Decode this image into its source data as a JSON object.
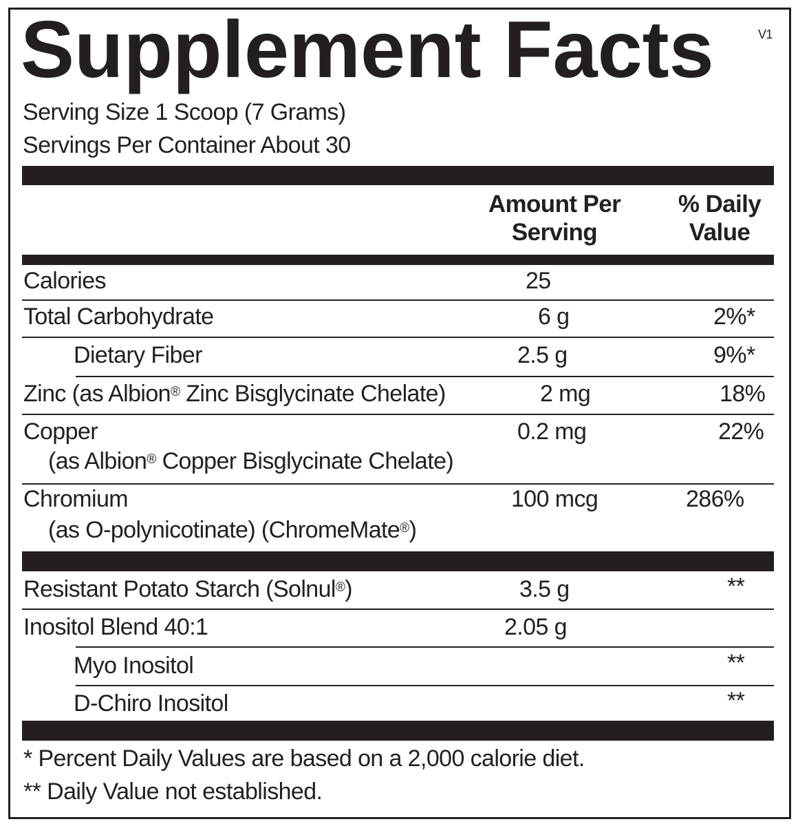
{
  "title": "Supplement Facts",
  "version": "V1",
  "serving_size": "Serving Size 1 Scoop (7 Grams)",
  "servings_per_container": "Servings Per Container About 30",
  "header": {
    "amount_line1": "Amount Per",
    "amount_line2": "Serving",
    "dv_line1": "% Daily",
    "dv_line2": "Value"
  },
  "rows": [
    {
      "name": "Calories",
      "amount": "25",
      "dv": ""
    },
    {
      "name": "Total Carbohydrate",
      "amount": "6 g",
      "dv": "2%*"
    },
    {
      "name": "Dietary Fiber",
      "amount": "2.5 g",
      "dv": "9%*"
    },
    {
      "name": "Zinc (as Albion",
      "name_sup": "®",
      "name_after": " Zinc Bisglycinate Chelate)",
      "amount": "2 mg",
      "dv": "18%"
    },
    {
      "name": "Copper",
      "sub": "(as Albion",
      "sub_sup": "®",
      "sub_after": " Copper Bisglycinate Chelate)",
      "amount": "0.2 mg",
      "dv": "22%"
    },
    {
      "name": "Chromium",
      "sub": "(as O-polynicotinate) (ChromeMate",
      "sub_sup": "®",
      "sub_after": ")",
      "amount": "100 mcg",
      "dv": "286%"
    },
    {
      "name": "Resistant Potato Starch (Solnul",
      "name_sup": "®",
      "name_after": ")",
      "amount": "3.5 g",
      "dv": "**"
    },
    {
      "name": "Inositol Blend 40:1",
      "amount": "2.05 g",
      "dv": ""
    },
    {
      "name": "Myo Inositol",
      "amount": "",
      "dv": "**"
    },
    {
      "name": "D-Chiro Inositol",
      "amount": "",
      "dv": "**"
    }
  ],
  "footnotes": [
    "* Percent Daily Values are based on a 2,000 calorie diet.",
    "** Daily Value not established."
  ]
}
